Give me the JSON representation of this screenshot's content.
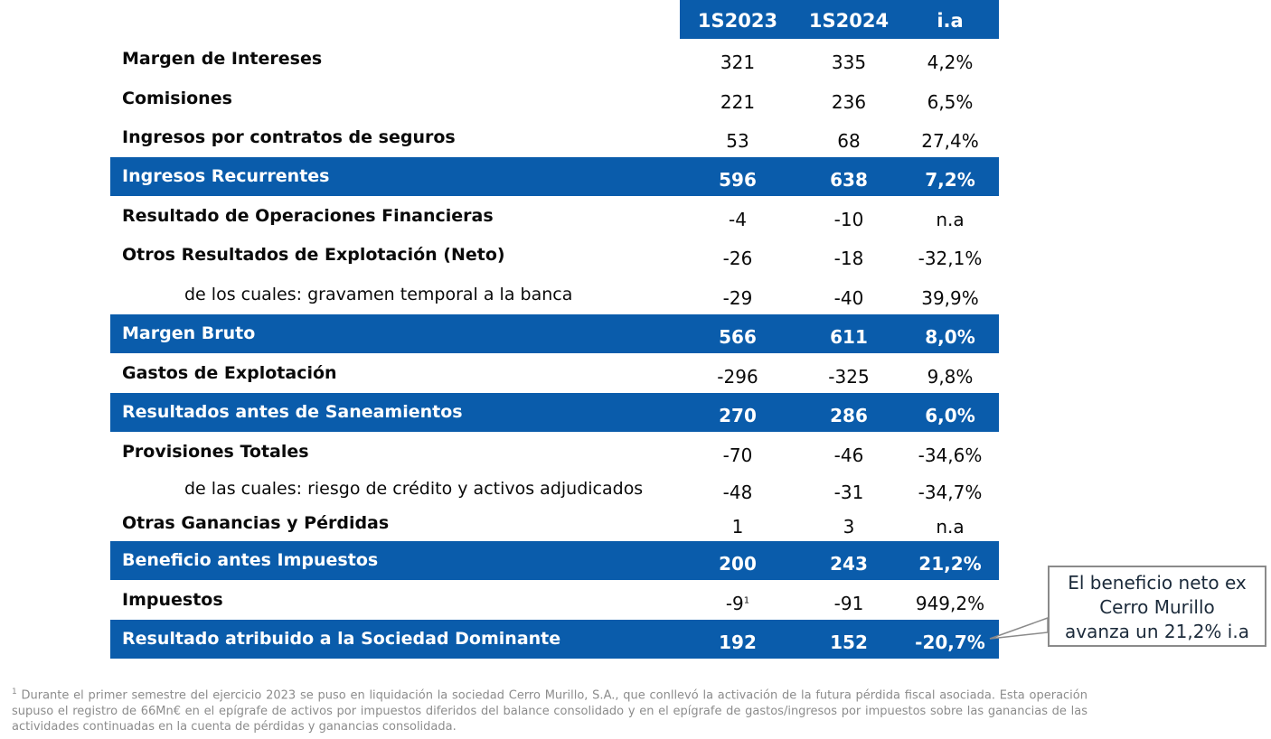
{
  "table": {
    "headers": [
      "1S2023",
      "1S2024",
      "i.a"
    ],
    "rows": [
      {
        "label": "Margen de Intereses",
        "v1": "321",
        "v2": "335",
        "v3": "4,2%",
        "style": "bold"
      },
      {
        "label": "Comisiones",
        "v1": "221",
        "v2": "236",
        "v3": "6,5%",
        "style": "bold"
      },
      {
        "label": "Ingresos por contratos de seguros",
        "v1": "53",
        "v2": "68",
        "v3": "27,4%",
        "style": "bold"
      },
      {
        "label": "Ingresos Recurrentes",
        "v1": "596",
        "v2": "638",
        "v3": "7,2%",
        "style": "highlight"
      },
      {
        "label": "Resultado de Operaciones Financieras",
        "v1": "-4",
        "v2": "-10",
        "v3": "n.a",
        "style": "bold"
      },
      {
        "label": "Otros Resultados de Explotación (Neto)",
        "v1": "-26",
        "v2": "-18",
        "v3": "-32,1%",
        "style": "bold"
      },
      {
        "label": "de los cuales: gravamen temporal a la banca",
        "v1": "-29",
        "v2": "-40",
        "v3": "39,9%",
        "style": "sub"
      },
      {
        "label": "Margen Bruto",
        "v1": "566",
        "v2": "611",
        "v3": "8,0%",
        "style": "highlight"
      },
      {
        "label": "Gastos de Explotación",
        "v1": "-296",
        "v2": "-325",
        "v3": "9,8%",
        "style": "bold"
      },
      {
        "label": "Resultados antes de Saneamientos",
        "v1": "270",
        "v2": "286",
        "v3": "6,0%",
        "style": "highlight"
      },
      {
        "label": "Provisiones Totales",
        "v1": "-70",
        "v2": "-46",
        "v3": "-34,6%",
        "style": "bold"
      },
      {
        "label": "de las cuales: riesgo de crédito y activos adjudicados",
        "v1": "-48",
        "v2": "-31",
        "v3": "-34,7%",
        "style": "sub"
      },
      {
        "label": "Otras Ganancias y Pérdidas",
        "v1": "1",
        "v2": "3",
        "v3": "n.a",
        "style": "bold"
      },
      {
        "label": "Beneficio antes Impuestos",
        "v1": "200",
        "v2": "243",
        "v3": "21,2%",
        "style": "highlight"
      },
      {
        "label": "Impuestos",
        "v1": "-9",
        "v1_sup": "1",
        "v2": "-91",
        "v3": "949,2%",
        "style": "bold"
      },
      {
        "label": "Resultado atribuido a la Sociedad Dominante",
        "v1": "192",
        "v2": "152",
        "v3": "-20,7%",
        "style": "highlight"
      }
    ]
  },
  "callout": {
    "line1": "El beneficio neto ex",
    "line2": "Cerro Murillo",
    "line3": "avanza un 21,2% i.a"
  },
  "footnote": {
    "marker": "1",
    "text": " Durante el primer semestre del ejercicio 2023 se puso en liquidación la sociedad Cerro Murillo, S.A.,  que conllevó la activación de la futura pérdida fiscal asociada. Esta operación supuso el registro de 66Mn€ en el epígrafe de activos por impuestos diferidos del balance consolidado y en el epígrafe de gastos/ingresos por impuestos sobre las ganancias de las actividades continuadas en la cuenta de pérdidas y ganancias consolidada."
  },
  "colors": {
    "accent": "#0a5cab",
    "callout_border": "#8a8a8a",
    "footnote": "#8c8c8c"
  }
}
